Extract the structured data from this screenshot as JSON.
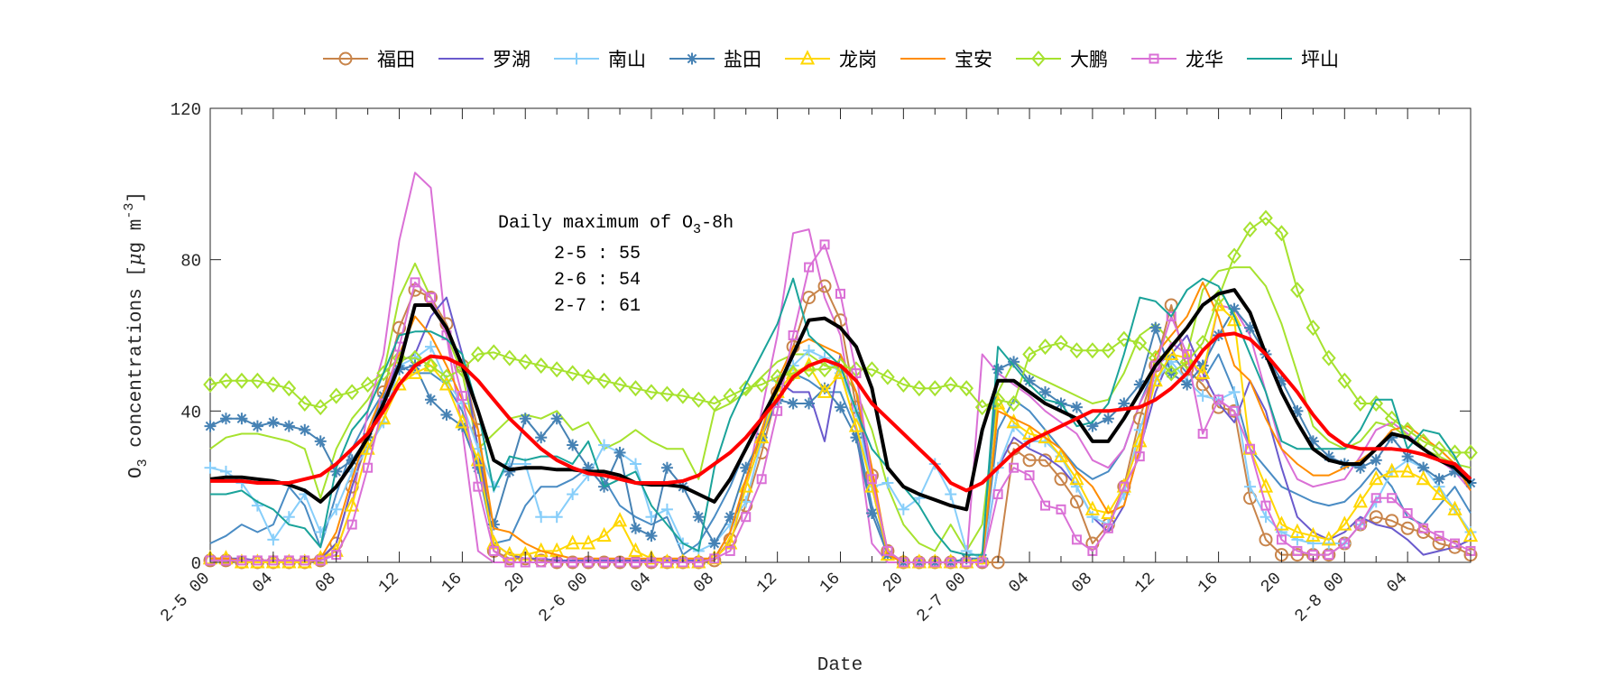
{
  "chart_data": {
    "type": "line",
    "title": "",
    "xlabel": "Date",
    "ylabel": "O3 concentrations [μg m-3]",
    "ylabel_parts": {
      "o": "O",
      "sub": "3",
      "mid": " concentrations [",
      "mu": "μ",
      "g": "g m",
      "sup": "-3",
      "end": "]"
    },
    "xlim": [
      0,
      80
    ],
    "ylim": [
      0,
      120
    ],
    "yticks": [
      0,
      40,
      80,
      120
    ],
    "xticks": [
      {
        "h": 0,
        "label": "2-5 00"
      },
      {
        "h": 4,
        "label": "04"
      },
      {
        "h": 8,
        "label": "08"
      },
      {
        "h": 12,
        "label": "12"
      },
      {
        "h": 16,
        "label": "16"
      },
      {
        "h": 20,
        "label": "20"
      },
      {
        "h": 24,
        "label": "2-6 00"
      },
      {
        "h": 28,
        "label": "04"
      },
      {
        "h": 32,
        "label": "08"
      },
      {
        "h": 36,
        "label": "12"
      },
      {
        "h": 40,
        "label": "16"
      },
      {
        "h": 44,
        "label": "20"
      },
      {
        "h": 48,
        "label": "2-7 00"
      },
      {
        "h": 52,
        "label": "04"
      },
      {
        "h": 56,
        "label": "08"
      },
      {
        "h": 60,
        "label": "12"
      },
      {
        "h": 64,
        "label": "16"
      },
      {
        "h": 68,
        "label": "20"
      },
      {
        "h": 72,
        "label": "2-8 00"
      },
      {
        "h": 76,
        "label": "04"
      }
    ],
    "grid": false,
    "legend_placement": "top (outside), horizontal",
    "annotation": {
      "title_pre": "Daily maximum of O",
      "title_sub": "3",
      "title_post": "-8h",
      "lines": [
        "2-5 : 55",
        "2-6 : 54",
        "2-7 : 61"
      ]
    },
    "series": [
      {
        "color": "#4a8cc4",
        "width": 2,
        "marker": "none",
        "values": [
          5,
          7,
          10,
          8,
          10,
          20,
          15,
          4,
          18,
          30,
          38,
          45,
          52,
          50,
          50,
          47,
          40,
          25,
          5,
          6,
          15,
          20,
          20,
          22,
          25,
          22,
          15,
          12,
          10,
          12,
          2,
          5,
          12,
          20,
          30,
          38,
          45,
          50,
          48,
          45,
          45,
          35,
          15,
          3,
          0,
          0,
          0,
          0,
          0,
          0,
          35,
          43,
          40,
          35,
          30,
          25,
          22,
          24,
          30,
          42,
          52,
          55,
          50,
          48,
          55,
          45,
          30,
          25,
          20,
          18,
          16,
          15,
          16,
          20,
          25,
          20,
          12,
          10,
          15,
          20,
          13
        ]
      },
      {
        "color": "#a6e22e",
        "width": 2,
        "marker": "none",
        "values": [
          30,
          33,
          34,
          34,
          33,
          32,
          30,
          17,
          30,
          38,
          43,
          50,
          70,
          79,
          70,
          60,
          50,
          30,
          34,
          38,
          39,
          38,
          40,
          35,
          37,
          30,
          32,
          35,
          32,
          30,
          30,
          22,
          40,
          42,
          45,
          49,
          53,
          55,
          55,
          52,
          51,
          45,
          35,
          20,
          10,
          5,
          3,
          10,
          3,
          10,
          45,
          53,
          50,
          48,
          46,
          44,
          42,
          43,
          50,
          60,
          63,
          58,
          55,
          72,
          77,
          78,
          78,
          73,
          63,
          50,
          36,
          32,
          30,
          32,
          37,
          36,
          33,
          30,
          28,
          26,
          25
        ]
      },
      {
        "color": "#da70d6",
        "width": 2,
        "marker": "none",
        "values": [
          0.5,
          0.5,
          0.5,
          0.5,
          0.5,
          0.5,
          0.5,
          0.5,
          3,
          15,
          40,
          55,
          85,
          103,
          99,
          60,
          35,
          3,
          0,
          0,
          0,
          0,
          0,
          0,
          0,
          0,
          0,
          0,
          0,
          0,
          0,
          0,
          1,
          5,
          20,
          40,
          60,
          87,
          88,
          70,
          60,
          35,
          5,
          0,
          0,
          0,
          0,
          0,
          0,
          55,
          50,
          47,
          44,
          40,
          37,
          34,
          27,
          25,
          30,
          42,
          50,
          58,
          55,
          48,
          68,
          67,
          60,
          45,
          30,
          22,
          20,
          21,
          22,
          28,
          35,
          37,
          34,
          30,
          27,
          24,
          19
        ]
      },
      {
        "name": "福田",
        "color": "#c8844a",
        "width": 2,
        "marker": "circle",
        "values": [
          0.5,
          0.5,
          0,
          0,
          0,
          0,
          0,
          0.5,
          5,
          20,
          32,
          45,
          62,
          72,
          70,
          63,
          52,
          35,
          3,
          1,
          1,
          0.5,
          0,
          0,
          0,
          0,
          0,
          0,
          0,
          0,
          0,
          0,
          0.5,
          6,
          15,
          29,
          45,
          57,
          70,
          73,
          64,
          41,
          23,
          3,
          0,
          0,
          0,
          0,
          0,
          0,
          0,
          30,
          27,
          27,
          22,
          16,
          5,
          10,
          20,
          38,
          52,
          68,
          51,
          47,
          41,
          40,
          17,
          6,
          2,
          2,
          2,
          2,
          5,
          10,
          12,
          11,
          9,
          8,
          5,
          4,
          2
        ]
      },
      {
        "name": "罗湖",
        "color": "#6a5acd",
        "width": 2,
        "marker": "none",
        "values": [
          1,
          1,
          1,
          0.5,
          0.5,
          0.5,
          0.5,
          1,
          5,
          20,
          33,
          45,
          53,
          55,
          65,
          70,
          55,
          30,
          5,
          2,
          1,
          1,
          0.5,
          0.5,
          0.5,
          0.5,
          0.5,
          0.5,
          0.5,
          0.5,
          0.5,
          0.5,
          1,
          8,
          20,
          33,
          48,
          45,
          45,
          32,
          55,
          45,
          20,
          2,
          0,
          0,
          0,
          0,
          0,
          0,
          25,
          33,
          30,
          28,
          25,
          20,
          12,
          8,
          15,
          30,
          45,
          55,
          60,
          50,
          42,
          37,
          48,
          40,
          25,
          12,
          8,
          6,
          8,
          12,
          10,
          9,
          6,
          2,
          3,
          4,
          6
        ]
      },
      {
        "name": "南山",
        "color": "#87cefa",
        "width": 2,
        "marker": "plus",
        "values": [
          25,
          24,
          21,
          15,
          6,
          12,
          18,
          8,
          14,
          24,
          30,
          37,
          52,
          54,
          57,
          48,
          42,
          30,
          20,
          26,
          26,
          12,
          12,
          18,
          23,
          31,
          29,
          26,
          12,
          14,
          5,
          3,
          5,
          10,
          16,
          32,
          48,
          52,
          56,
          54,
          50,
          40,
          20,
          21,
          14,
          17,
          26,
          18,
          3,
          1,
          25,
          36,
          32,
          32,
          28,
          20,
          12,
          10,
          18,
          35,
          48,
          53,
          48,
          44,
          43,
          45,
          20,
          12,
          8,
          6,
          5,
          5,
          5,
          10,
          16,
          24,
          27,
          25,
          20,
          14,
          8
        ]
      },
      {
        "name": "盐田",
        "color": "#4682b4",
        "width": 2,
        "marker": "asterisk",
        "values": [
          36,
          38,
          38,
          36,
          37,
          36,
          35,
          32,
          24,
          27,
          33,
          44,
          51,
          52,
          43,
          39,
          36,
          25,
          10,
          24,
          38,
          33,
          38,
          31,
          25,
          20,
          29,
          9,
          7,
          25,
          20,
          12,
          5,
          12,
          25,
          33,
          43,
          42,
          42,
          46,
          41,
          33,
          13,
          2,
          0,
          0,
          0,
          0,
          1,
          1,
          51,
          53,
          48,
          45,
          42,
          41,
          36,
          38,
          42,
          47,
          62,
          50,
          47,
          52,
          60,
          67,
          62,
          55,
          48,
          40,
          32,
          28,
          26,
          25,
          27,
          33,
          28,
          25,
          22,
          24,
          21
        ]
      },
      {
        "name": "龙岗",
        "color": "#ffd700",
        "width": 2,
        "marker": "triangle",
        "values": [
          1,
          1,
          0,
          0,
          0,
          0,
          0,
          1,
          3,
          15,
          30,
          38,
          47,
          50,
          52,
          47,
          37,
          27,
          5,
          2,
          2,
          3,
          3,
          5,
          5,
          7,
          11,
          3,
          1,
          0,
          0,
          0,
          1,
          5,
          20,
          33,
          45,
          50,
          52,
          45,
          50,
          36,
          20,
          2,
          0,
          0,
          0,
          0,
          0,
          1,
          42,
          37,
          34,
          33,
          28,
          22,
          14,
          13,
          20,
          32,
          48,
          55,
          54,
          50,
          68,
          64,
          30,
          20,
          10,
          8,
          7,
          6,
          10,
          16,
          22,
          24,
          24,
          22,
          18,
          14,
          7
        ]
      },
      {
        "name": "宝安",
        "color": "#ff8c00",
        "width": 2,
        "marker": "none",
        "values": [
          1,
          1,
          0.5,
          0.5,
          0.5,
          0.5,
          0.5,
          1,
          8,
          22,
          35,
          45,
          55,
          65,
          60,
          52,
          43,
          35,
          9,
          8,
          5,
          3,
          2,
          1,
          1,
          1,
          1,
          1,
          1,
          1,
          1,
          1,
          1,
          8,
          22,
          35,
          48,
          57,
          59,
          57,
          55,
          45,
          25,
          2,
          0,
          0,
          0,
          0,
          0,
          0,
          40,
          38,
          36,
          33,
          30,
          24,
          20,
          13,
          15,
          30,
          55,
          60,
          65,
          74,
          65,
          52,
          48,
          38,
          30,
          26,
          23,
          23,
          25,
          27,
          30,
          35,
          36,
          33,
          30,
          26,
          19
        ]
      },
      {
        "name": "大鹏",
        "color": "#a6e22e",
        "width": 2,
        "marker": "diamond",
        "values": [
          47,
          48,
          48,
          48,
          47,
          46,
          42,
          41,
          44,
          45,
          47,
          50,
          54,
          54,
          52,
          49,
          51,
          55,
          55.5,
          54,
          53,
          52,
          51,
          50,
          49,
          48,
          47,
          46,
          45,
          44.5,
          44,
          43,
          42,
          44,
          46,
          47,
          49,
          50,
          51,
          51,
          52,
          51,
          51,
          49,
          47,
          46,
          46,
          47,
          46,
          41,
          43,
          42,
          55,
          57,
          58,
          56,
          56,
          56,
          59,
          58,
          54,
          50,
          53,
          58,
          70,
          81,
          88,
          91,
          87,
          72,
          62,
          54,
          48,
          42,
          42,
          38,
          35,
          32,
          30,
          29,
          29
        ]
      },
      {
        "name": "龙华",
        "color": "#da70d6",
        "width": 2,
        "marker": "square",
        "values": [
          0.5,
          0.5,
          0.5,
          0.5,
          0.5,
          0.5,
          0.5,
          0.5,
          2,
          10,
          25,
          42,
          57,
          74,
          70,
          60,
          44,
          20,
          3,
          0,
          0,
          0,
          0,
          0,
          0,
          0,
          0,
          0,
          0,
          0,
          0,
          0,
          1,
          3,
          12,
          22,
          40,
          60,
          78,
          84,
          71,
          50,
          22,
          3,
          0,
          0,
          0,
          0,
          0,
          0,
          18,
          25,
          23,
          15,
          14,
          6,
          3,
          9,
          20,
          28,
          52,
          65,
          55,
          34,
          43,
          40,
          30,
          15,
          6,
          3,
          2,
          2,
          5,
          10,
          17,
          17,
          13,
          9,
          7,
          5,
          3
        ]
      },
      {
        "name": "坪山",
        "color": "#1aa39a",
        "width": 2,
        "marker": "none",
        "values": [
          18,
          18,
          19,
          16,
          14,
          10,
          9,
          4,
          25,
          35,
          40,
          50,
          60,
          61,
          61,
          59,
          55,
          40,
          19,
          28,
          27,
          28,
          28,
          26,
          32,
          20,
          22,
          24,
          15,
          10,
          5,
          3,
          25,
          38,
          47,
          55,
          63,
          75,
          60,
          56,
          52,
          40,
          30,
          25,
          20,
          15,
          8,
          3,
          2,
          2,
          57,
          52,
          47,
          43,
          42,
          36,
          37,
          42,
          55,
          70,
          69,
          65,
          72,
          75,
          73,
          65,
          55,
          45,
          32,
          30,
          30,
          30,
          30,
          35,
          43,
          43,
          30,
          35,
          34,
          28,
          20
        ]
      },
      {
        "color": "#000000",
        "width": 4,
        "marker": "none",
        "values": [
          22,
          22.5,
          22.5,
          22,
          21.5,
          20.5,
          19,
          16,
          20,
          26,
          33,
          42,
          52,
          68,
          68,
          62,
          52,
          40,
          27,
          24.5,
          25,
          25,
          24.5,
          24.5,
          24,
          24,
          23,
          21,
          20.5,
          20.5,
          20,
          18,
          16,
          22,
          30,
          38,
          46,
          55,
          64,
          64.5,
          62,
          57,
          46,
          25,
          20,
          18,
          16.5,
          15,
          14,
          35,
          48,
          48,
          45,
          42,
          40,
          38,
          32,
          32,
          38,
          45,
          52,
          57,
          62,
          68,
          71,
          72,
          66,
          55,
          45,
          37,
          30,
          27,
          26,
          26,
          30,
          34,
          33,
          30,
          27,
          25,
          21
        ]
      },
      {
        "color": "#ff0000",
        "width": 4,
        "marker": "none",
        "values": [
          21.5,
          21.5,
          21.5,
          21,
          21,
          21,
          22,
          23,
          26,
          30,
          34,
          40,
          47,
          52,
          54.5,
          54,
          52,
          48,
          43,
          38,
          34,
          30,
          27,
          25,
          23.5,
          23,
          22,
          21,
          21,
          21,
          21.5,
          23,
          26,
          29,
          33,
          38,
          43,
          49,
          52,
          53.5,
          52,
          48,
          42,
          38,
          34,
          30,
          26,
          21,
          19,
          21,
          25,
          29,
          32,
          34,
          36,
          38,
          40,
          40,
          40.5,
          41,
          43,
          46,
          50,
          56,
          60,
          60.5,
          59,
          55,
          50,
          45,
          39,
          34,
          31,
          30,
          30,
          30,
          29.5,
          28.5,
          27,
          26,
          22
        ]
      }
    ]
  }
}
